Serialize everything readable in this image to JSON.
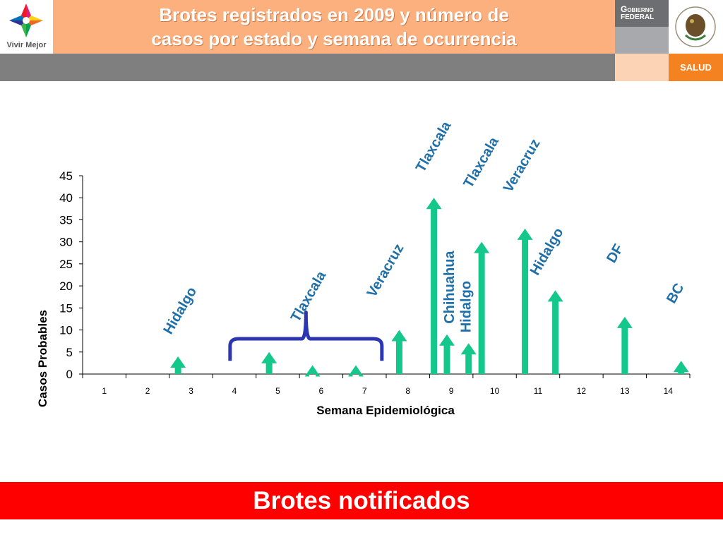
{
  "header": {
    "title_line1": "Brotes registrados en 2009 y número de",
    "title_line2": "casos por estado y semana de ocurrencia",
    "logo_caption": "Vivir Mejor",
    "gob_line1": "Gobierno",
    "gob_line2": "Federal",
    "salud": "SALUD"
  },
  "colors": {
    "title_band": "#fcb07e",
    "arrow": "#14c88c",
    "label": "#1f6fa8",
    "brace": "#2b36b0",
    "footer": "#ff0000"
  },
  "footer": {
    "text": "Brotes notificados"
  },
  "chart_data": {
    "type": "bar",
    "xlabel": "Semana Epidemiológica",
    "ylabel": "Casos Probables",
    "ylim": [
      0,
      45
    ],
    "yticks": [
      0,
      5,
      10,
      15,
      20,
      25,
      30,
      35,
      40,
      45
    ],
    "categories": [
      "1",
      "2",
      "3",
      "4",
      "5",
      "6",
      "7",
      "8",
      "9",
      "10",
      "11",
      "12",
      "13",
      "14"
    ],
    "outbreaks": [
      {
        "week": 2.7,
        "value": 4,
        "label": "Hidalgo"
      },
      {
        "week": 4.8,
        "value": 5,
        "label": ""
      },
      {
        "week": 5.8,
        "value": 2,
        "label": "Tlaxcala"
      },
      {
        "week": 6.8,
        "value": 2,
        "label": ""
      },
      {
        "week": 7.8,
        "value": 10,
        "label": "Veracruz"
      },
      {
        "week": 8.6,
        "value": 40,
        "label": "Tlaxcala"
      },
      {
        "week": 8.9,
        "value": 9,
        "label": "Chihuahua"
      },
      {
        "week": 9.4,
        "value": 7,
        "label": "Hidalgo"
      },
      {
        "week": 9.7,
        "value": 30,
        "label": "Tlaxcala"
      },
      {
        "week": 10.7,
        "value": 33,
        "label": "Veracruz"
      },
      {
        "week": 11.4,
        "value": 19,
        "label": "Hidalgo"
      },
      {
        "week": 13.0,
        "value": 13,
        "label": "DF"
      },
      {
        "week": 14.3,
        "value": 3,
        "label": "BC"
      }
    ]
  }
}
